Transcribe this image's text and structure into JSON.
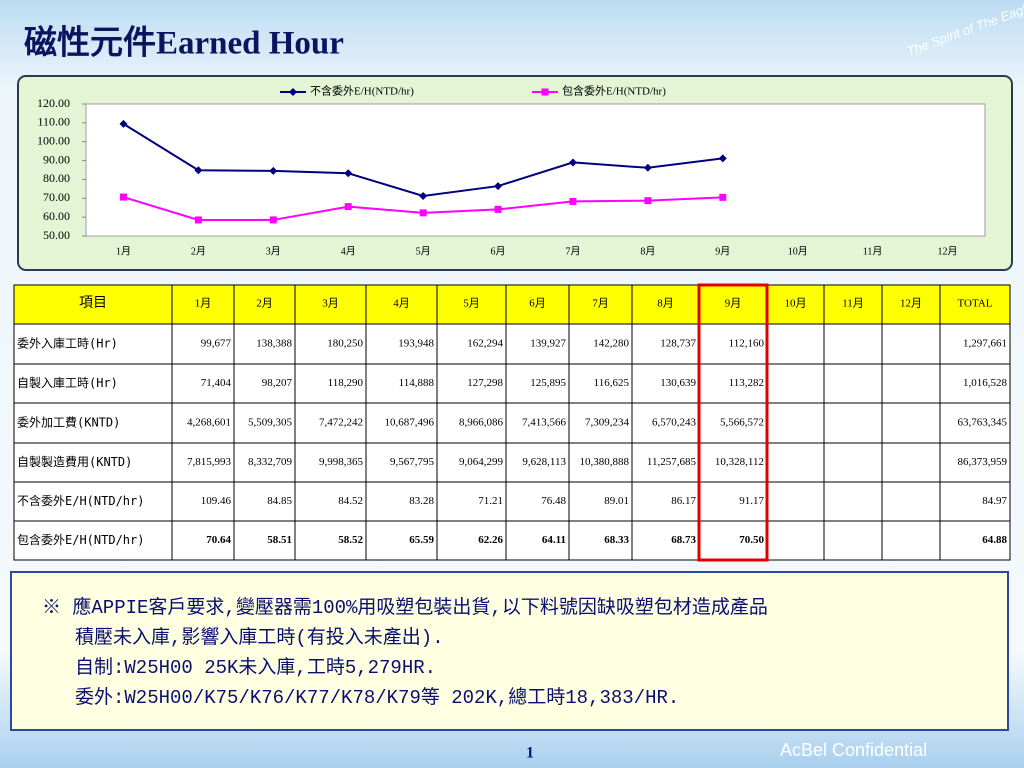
{
  "title": "磁性元件Earned Hour",
  "chart_data": {
    "type": "line",
    "categories": [
      "1月",
      "2月",
      "3月",
      "4月",
      "5月",
      "6月",
      "7月",
      "8月",
      "9月",
      "10月",
      "11月",
      "12月"
    ],
    "series": [
      {
        "name": "不含委外E/H(NTD/hr)",
        "color": "#000080",
        "marker": "diamond",
        "values": [
          109.46,
          84.85,
          84.52,
          83.28,
          71.21,
          76.48,
          89.01,
          86.17,
          91.17,
          null,
          null,
          null
        ]
      },
      {
        "name": "包含委外E/H(NTD/hr)",
        "color": "#ff00ff",
        "marker": "square",
        "values": [
          70.64,
          58.51,
          58.52,
          65.59,
          62.26,
          64.11,
          68.33,
          68.73,
          70.5,
          null,
          null,
          null
        ]
      }
    ],
    "ylim": [
      50,
      120
    ],
    "yticks": [
      {
        "value": 50,
        "label": "50.00"
      },
      {
        "value": 60,
        "label": "60.00"
      },
      {
        "value": 70,
        "label": "70.00"
      },
      {
        "value": 80,
        "label": "80.00"
      },
      {
        "value": 90,
        "label": "90.00"
      },
      {
        "value": 100,
        "label": "100.00"
      },
      {
        "value": 110,
        "label": "110.00"
      },
      {
        "value": 120,
        "label": "120.00"
      }
    ],
    "legend": "top"
  },
  "table": {
    "header_label": "項目",
    "total_header": "TOTAL",
    "highlight_column": 8,
    "rows": [
      {
        "label": "委外入庫工時(Hr)",
        "values": [
          "99,677",
          "138,388",
          "180,250",
          "193,948",
          "162,294",
          "139,927",
          "142,280",
          "128,737",
          "112,160"
        ],
        "total": "1,297,661"
      },
      {
        "label": "自製入庫工時(Hr)",
        "values": [
          "71,404",
          "98,207",
          "118,290",
          "114,888",
          "127,298",
          "125,895",
          "116,625",
          "130,639",
          "113,282"
        ],
        "total": "1,016,528"
      },
      {
        "label": "委外加工費(KNTD)",
        "values": [
          "4,268,601",
          "5,509,305",
          "7,472,242",
          "10,687,496",
          "8,966,086",
          "7,413,566",
          "7,309,234",
          "6,570,243",
          "5,566,572"
        ],
        "total": "63,763,345"
      },
      {
        "label": "自製製造費用(KNTD)",
        "values": [
          "7,815,993",
          "8,332,709",
          "9,998,365",
          "9,567,795",
          "9,064,299",
          "9,628,113",
          "10,380,888",
          "11,257,685",
          "10,328,112"
        ],
        "total": "86,373,959"
      },
      {
        "label": "不含委外E/H(NTD/hr)",
        "values": [
          "109.46",
          "84.85",
          "84.52",
          "83.28",
          "71.21",
          "76.48",
          "89.01",
          "86.17",
          "91.17"
        ],
        "total": "84.97"
      },
      {
        "label": "包含委外E/H(NTD/hr)",
        "values": [
          "70.64",
          "58.51",
          "58.52",
          "65.59",
          "62.26",
          "64.11",
          "68.33",
          "68.73",
          "70.50"
        ],
        "total": "64.88",
        "bold": true
      }
    ]
  },
  "note": [
    "※ 應APPIE客戶要求,變壓器需100%用吸塑包裝出貨,以下料號因缺吸塑包材造成產品",
    "積壓未入庫,影響入庫工時(有投入未產出).",
    "自制:W25H00 25K未入庫,工時5,279HR.",
    "委外:W25H00/K75/K76/K77/K78/K79等 202K,總工時18,383/HR."
  ],
  "footer": {
    "page": "1",
    "confidential": "AcBel Confidential",
    "logo": "The Spirit of The Eagle"
  }
}
